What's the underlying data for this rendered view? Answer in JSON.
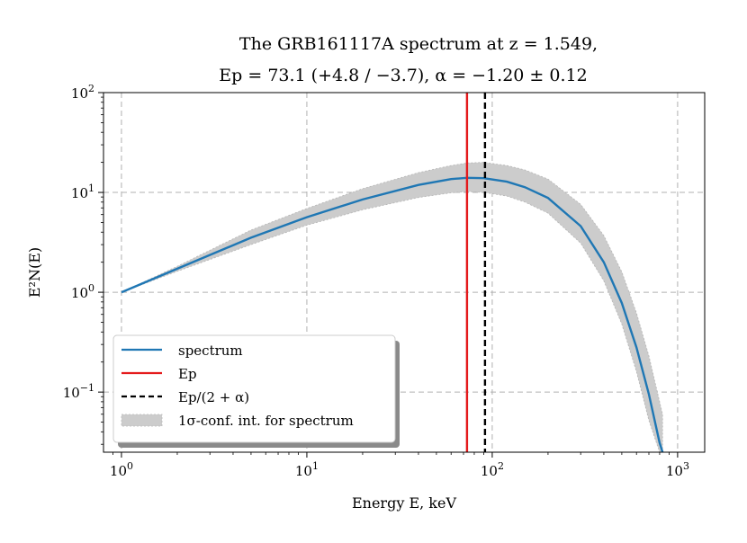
{
  "chart_data": {
    "type": "line",
    "title_line1": "The GRB161117A spectrum at z = 1.549,",
    "title_line2": "Ep = 73.1 (+4.8 / −3.7), α = −1.20 ± 0.12",
    "xlabel": "Energy E, keV",
    "ylabel": "E²N(E)",
    "xscale": "log",
    "yscale": "log",
    "xlim": [
      0.8,
      1400
    ],
    "ylim": [
      0.025,
      100
    ],
    "x_ticks": [
      {
        "value": 1,
        "base": "10",
        "exp": "0"
      },
      {
        "value": 10,
        "base": "10",
        "exp": "1"
      },
      {
        "value": 100,
        "base": "10",
        "exp": "2"
      },
      {
        "value": 1000,
        "base": "10",
        "exp": "3"
      }
    ],
    "y_ticks": [
      {
        "value": 0.1,
        "base": "10",
        "exp": "−1"
      },
      {
        "value": 1,
        "base": "10",
        "exp": "0"
      },
      {
        "value": 10,
        "base": "10",
        "exp": "1"
      },
      {
        "value": 100,
        "base": "10",
        "exp": "2"
      }
    ],
    "grid": true,
    "series": [
      {
        "name": "spectrum",
        "color": "#1f77b4",
        "x": [
          1,
          2,
          5,
          10,
          20,
          40,
          60,
          73.1,
          90,
          120,
          150,
          200,
          300,
          400,
          500,
          600,
          700,
          800,
          830
        ],
        "y": [
          1.0,
          1.72,
          3.52,
          5.65,
          8.5,
          11.9,
          13.6,
          14.0,
          13.9,
          12.8,
          11.3,
          8.8,
          4.6,
          2.0,
          0.78,
          0.28,
          0.095,
          0.031,
          0.025
        ]
      },
      {
        "name": "1σ-conf. int. for spectrum",
        "color": "#cccccc",
        "x": [
          1,
          2,
          5,
          10,
          20,
          40,
          60,
          73.1,
          90,
          120,
          150,
          200,
          300,
          400,
          500,
          600,
          700,
          800,
          830
        ],
        "y_low": [
          1.0,
          1.62,
          3.0,
          4.7,
          6.7,
          8.9,
          9.9,
          10.2,
          10.0,
          9.2,
          8.0,
          6.2,
          3.1,
          1.3,
          0.48,
          0.16,
          0.052,
          0.025,
          0.025
        ],
        "y_high": [
          1.0,
          1.82,
          4.2,
          6.9,
          10.9,
          15.8,
          18.6,
          19.7,
          20.0,
          18.6,
          16.8,
          13.6,
          7.6,
          3.7,
          1.6,
          0.62,
          0.23,
          0.08,
          0.06
        ]
      }
    ],
    "vlines": [
      {
        "name": "Ep",
        "x": 73.1,
        "color": "#e41a1c",
        "style": "solid"
      },
      {
        "name": "Ep/(2+α)",
        "x": 91.4,
        "color": "#000000",
        "style": "dashed"
      }
    ],
    "legend": {
      "position": "lower-left",
      "entries": [
        {
          "label": "spectrum",
          "type": "line",
          "color": "#1f77b4"
        },
        {
          "label": "Ep",
          "type": "line",
          "color": "#e41a1c"
        },
        {
          "label": "Ep/(2 + α)",
          "type": "dashed",
          "color": "#000000"
        },
        {
          "label": "1σ-conf. int. for spectrum",
          "type": "patch",
          "color": "#cccccc"
        }
      ]
    }
  }
}
